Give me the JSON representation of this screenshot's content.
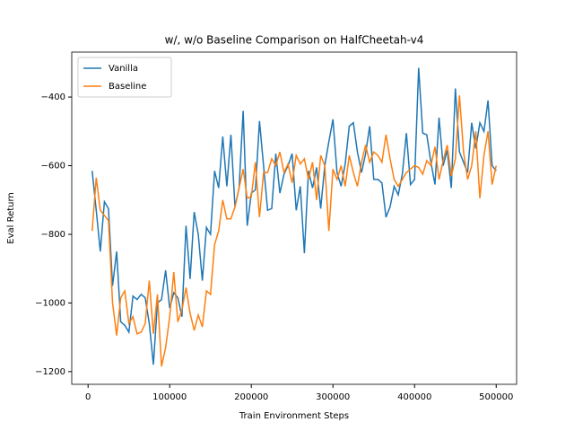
{
  "chart_data": {
    "type": "line",
    "title": "w/, w/o Baseline Comparison on HalfCheetah-v4",
    "x_label": "Train Environment Steps",
    "y_label": "Eval Return",
    "x": [
      5000,
      10000,
      15000,
      20000,
      25000,
      30000,
      35000,
      40000,
      45000,
      50000,
      55000,
      60000,
      65000,
      70000,
      75000,
      80000,
      85000,
      90000,
      95000,
      100000,
      105000,
      110000,
      115000,
      120000,
      125000,
      130000,
      135000,
      140000,
      145000,
      150000,
      155000,
      160000,
      165000,
      170000,
      175000,
      180000,
      185000,
      190000,
      195000,
      200000,
      205000,
      210000,
      215000,
      220000,
      225000,
      230000,
      235000,
      240000,
      245000,
      250000,
      255000,
      260000,
      265000,
      270000,
      275000,
      280000,
      285000,
      290000,
      295000,
      300000,
      305000,
      310000,
      315000,
      320000,
      325000,
      330000,
      335000,
      340000,
      345000,
      350000,
      355000,
      360000,
      365000,
      370000,
      375000,
      380000,
      385000,
      390000,
      395000,
      400000,
      405000,
      410000,
      415000,
      420000,
      425000,
      430000,
      435000,
      440000,
      445000,
      450000,
      455000,
      460000,
      465000,
      470000,
      475000,
      480000,
      485000,
      490000,
      495000,
      500000
    ],
    "series": [
      {
        "name": "Vanilla",
        "color": "#1f77b4",
        "values": [
          -615,
          -730,
          -850,
          -705,
          -725,
          -950,
          -850,
          -1055,
          -1065,
          -1085,
          -980,
          -990,
          -975,
          -985,
          -1060,
          -1180,
          -1000,
          -990,
          -905,
          -1015,
          -970,
          -985,
          -1040,
          -775,
          -930,
          -735,
          -800,
          -935,
          -780,
          -800,
          -615,
          -665,
          -515,
          -660,
          -510,
          -720,
          -665,
          -440,
          -775,
          -680,
          -670,
          -470,
          -600,
          -730,
          -725,
          -565,
          -680,
          -625,
          -600,
          -565,
          -730,
          -660,
          -855,
          -615,
          -665,
          -605,
          -725,
          -600,
          -530,
          -465,
          -620,
          -660,
          -595,
          -485,
          -475,
          -560,
          -620,
          -565,
          -485,
          -640,
          -640,
          -650,
          -750,
          -720,
          -660,
          -685,
          -625,
          -505,
          -655,
          -640,
          -315,
          -505,
          -510,
          -590,
          -655,
          -460,
          -600,
          -555,
          -665,
          -375,
          -560,
          -590,
          -620,
          -475,
          -550,
          -475,
          -500,
          -410,
          -600,
          -615
        ]
      },
      {
        "name": "Baseline",
        "color": "#ff7f0e",
        "values": [
          -790,
          -635,
          -730,
          -745,
          -760,
          -1000,
          -1095,
          -985,
          -965,
          -1060,
          -1040,
          -1090,
          -1085,
          -1060,
          -935,
          -1090,
          -975,
          -1185,
          -1130,
          -1040,
          -910,
          -1055,
          -1020,
          -955,
          -1030,
          -1080,
          -1035,
          -1070,
          -965,
          -975,
          -830,
          -790,
          -700,
          -755,
          -755,
          -720,
          -665,
          -610,
          -695,
          -690,
          -590,
          -750,
          -620,
          -620,
          -580,
          -600,
          -560,
          -620,
          -595,
          -650,
          -570,
          -595,
          -580,
          -640,
          -590,
          -700,
          -570,
          -600,
          -790,
          -610,
          -640,
          -600,
          -660,
          -570,
          -620,
          -660,
          -590,
          -540,
          -590,
          -560,
          -570,
          -590,
          -510,
          -580,
          -640,
          -660,
          -640,
          -620,
          -610,
          -600,
          -605,
          -625,
          -585,
          -600,
          -545,
          -640,
          -585,
          -540,
          -630,
          -580,
          -395,
          -560,
          -640,
          -600,
          -500,
          -695,
          -570,
          -500,
          -655,
          -600
        ]
      }
    ],
    "xlim": [
      -20000,
      525000
    ],
    "ylim": [
      -1237,
      -269
    ],
    "xticks": [
      0,
      100000,
      200000,
      300000,
      400000,
      500000
    ],
    "yticks": [
      {
        "value": -1200,
        "label": "−1200"
      },
      {
        "value": -1000,
        "label": "−1000"
      },
      {
        "value": -800,
        "label": "−800"
      },
      {
        "value": -600,
        "label": "−600"
      },
      {
        "value": -400,
        "label": "−400"
      }
    ],
    "legend": "upper left"
  }
}
